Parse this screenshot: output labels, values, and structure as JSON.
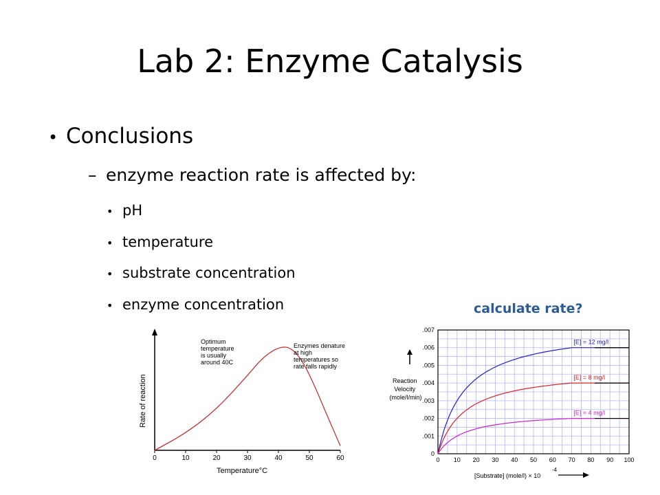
{
  "slide": {
    "title": "Lab 2: Enzyme Catalysis",
    "bullet1": "Conclusions",
    "bullet2": "enzyme reaction rate is affected by:",
    "sub_bullets": [
      "pH",
      "temperature",
      "substrate concentration",
      "enzyme concentration"
    ],
    "callout": "calculate rate?"
  },
  "chart_data": [
    {
      "type": "line",
      "xlabel": "Temperature°C",
      "ylabel": "Rate of reaction",
      "x_ticks": [
        0,
        10,
        20,
        30,
        40,
        50,
        60
      ],
      "xlim": [
        0,
        60
      ],
      "annotations": [
        "Optimum temperature is usually around 40C",
        "Enzymes denature at high temperatures so rate falls rapidly"
      ],
      "series": [
        {
          "color": "#c83232",
          "points": [
            [
              0,
              0
            ],
            [
              10,
              0.15
            ],
            [
              20,
              0.36
            ],
            [
              30,
              0.66
            ],
            [
              35,
              0.82
            ],
            [
              40,
              0.91
            ],
            [
              44,
              0.91
            ],
            [
              48,
              0.78
            ],
            [
              52,
              0.55
            ],
            [
              56,
              0.29
            ],
            [
              60,
              0.04
            ]
          ]
        }
      ]
    },
    {
      "type": "line",
      "ylabel": "Reaction Velocity (mole/l/min)",
      "xlabel": "[Substrate] (mole/l) × 10⁻⁴",
      "x_ticks": [
        0,
        10,
        20,
        30,
        40,
        50,
        60,
        70,
        80,
        90,
        100
      ],
      "y_ticks": [
        "0",
        ".001",
        ".002",
        ".003",
        ".004",
        ".005",
        ".006",
        ".007"
      ],
      "xlim": [
        0,
        100
      ],
      "ylim": [
        0,
        0.007
      ],
      "grid": true,
      "series": [
        {
          "name": "[E] = 12 mg/l",
          "color": "#2020c8",
          "vmax": 0.0072,
          "km": 14
        },
        {
          "name": "[E] = 8 mg/l",
          "color": "#e02020",
          "vmax": 0.0048,
          "km": 14
        },
        {
          "name": "[E] = 4 mg/l",
          "color": "#d020d0",
          "vmax": 0.0024,
          "km": 14
        }
      ]
    }
  ]
}
